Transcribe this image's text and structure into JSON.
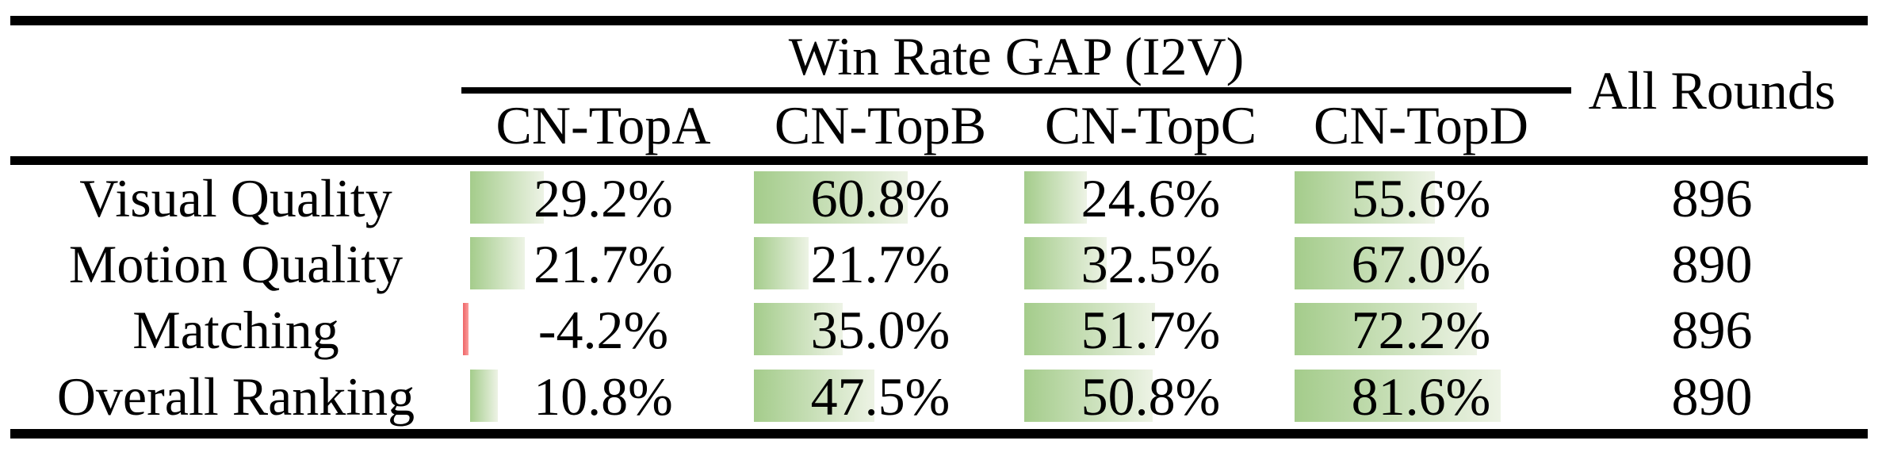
{
  "table": {
    "title": "Win Rate GAP (I2V)",
    "all_rounds_header": "All Rounds",
    "columns": [
      "CN-TopA",
      "CN-TopB",
      "CN-TopC",
      "CN-TopD"
    ],
    "rows": [
      {
        "label": "Visual Quality",
        "values": [
          "29.2%",
          "60.8%",
          "24.6%",
          "55.6%"
        ],
        "all_rounds": "896"
      },
      {
        "label": "Motion Quality",
        "values": [
          "21.7%",
          "21.7%",
          "32.5%",
          "67.0%"
        ],
        "all_rounds": "890"
      },
      {
        "label": "Matching",
        "values": [
          "-4.2%",
          "35.0%",
          "51.7%",
          "72.2%"
        ],
        "all_rounds": "896"
      },
      {
        "label": "Overall Ranking",
        "values": [
          "10.8%",
          "47.5%",
          "50.8%",
          "81.6%"
        ],
        "all_rounds": "890"
      }
    ],
    "colors": {
      "positive_bar_start": "#a4cc8b",
      "positive_bar_end": "#edf3e5",
      "negative_bar_start": "#ee6567",
      "negative_bar_end": "#fb9e9e",
      "rule": "#000000",
      "text": "#000000",
      "background": "#ffffff"
    }
  },
  "chart_data": {
    "type": "table",
    "title": "Win Rate GAP (I2V)",
    "columns": [
      "CN-TopA",
      "CN-TopB",
      "CN-TopC",
      "CN-TopD",
      "All Rounds"
    ],
    "row_labels": [
      "Visual Quality",
      "Motion Quality",
      "Matching",
      "Overall Ranking"
    ],
    "series": [
      {
        "name": "Visual Quality",
        "win_rate_gap_percent": [
          29.2,
          60.8,
          24.6,
          55.6
        ],
        "all_rounds": 896
      },
      {
        "name": "Motion Quality",
        "win_rate_gap_percent": [
          21.7,
          21.7,
          32.5,
          67.0
        ],
        "all_rounds": 890
      },
      {
        "name": "Matching",
        "win_rate_gap_percent": [
          -4.2,
          35.0,
          51.7,
          72.2
        ],
        "all_rounds": 896
      },
      {
        "name": "Overall Ranking",
        "win_rate_gap_percent": [
          10.8,
          47.5,
          50.8,
          81.6
        ],
        "all_rounds": 890
      }
    ],
    "notes": "In-cell green gradient data bars are proportional to the win-rate-gap percentage; the single negative value (-4.2%) is marked with a thin red bar."
  }
}
